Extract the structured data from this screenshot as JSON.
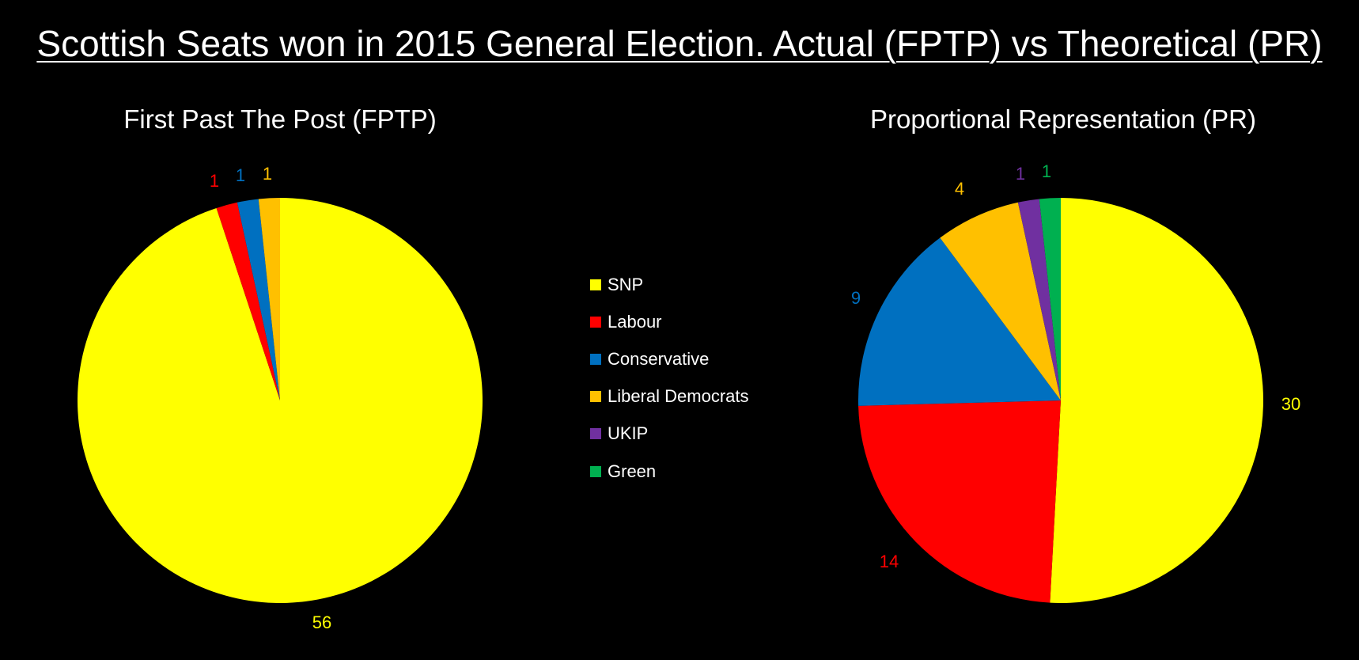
{
  "title": "Scottish Seats won in 2015 General Election. Actual (FPTP) vs Theoretical (PR)",
  "legend": [
    {
      "label": "SNP",
      "color": "#FFFF00"
    },
    {
      "label": "Labour",
      "color": "#FF0000"
    },
    {
      "label": "Conservative",
      "color": "#0070C0"
    },
    {
      "label": "Liberal Democrats",
      "color": "#FFC000"
    },
    {
      "label": "UKIP",
      "color": "#7030A0"
    },
    {
      "label": "Green",
      "color": "#00B050"
    }
  ],
  "chart_data": [
    {
      "type": "pie",
      "title": "First Past The Post (FPTP)",
      "categories": [
        "SNP",
        "Labour",
        "Conservative",
        "Liberal Democrats"
      ],
      "values": [
        56,
        1,
        1,
        1
      ],
      "colors": [
        "#FFFF00",
        "#FF0000",
        "#0070C0",
        "#FFC000"
      ],
      "data_labels": [
        "56",
        "1",
        "1",
        "1"
      ],
      "legend": "shared, center"
    },
    {
      "type": "pie",
      "title": "Proportional Representation (PR)",
      "categories": [
        "SNP",
        "Labour",
        "Conservative",
        "Liberal Democrats",
        "UKIP",
        "Green"
      ],
      "values": [
        30,
        14,
        9,
        4,
        1,
        1
      ],
      "colors": [
        "#FFFF00",
        "#FF0000",
        "#0070C0",
        "#FFC000",
        "#7030A0",
        "#00B050"
      ],
      "data_labels": [
        "30",
        "14",
        "9",
        "4",
        "1",
        "1"
      ],
      "legend": "shared, center"
    }
  ]
}
